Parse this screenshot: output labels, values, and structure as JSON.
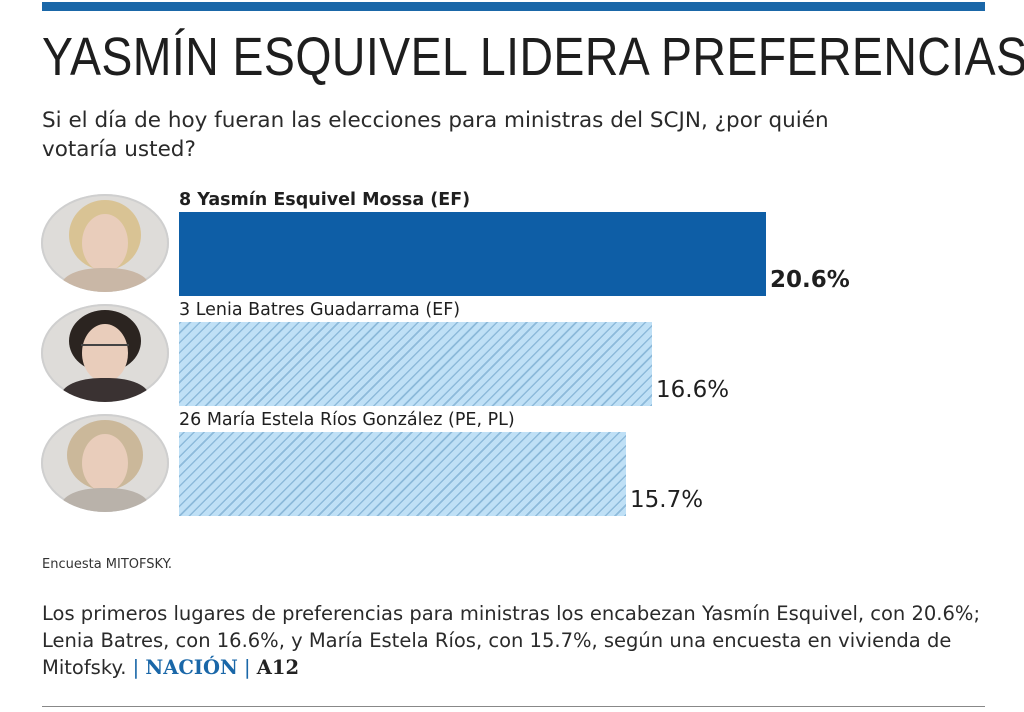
{
  "header": {
    "title": "YASMÍN ESQUIVEL LIDERA PREFERENCIAS",
    "subtitle": "Si el día de hoy fueran las elecciones para ministras del SCJN, ¿por quién votaría usted?"
  },
  "colors": {
    "accent": "#1a67a8",
    "leader_bar": "#0e5ea6",
    "other_bars": "#bfe0f6"
  },
  "chart_data": {
    "type": "bar",
    "orientation": "horizontal",
    "title": "",
    "xlabel": "",
    "ylabel": "",
    "categories": [
      "8 Yasmín Esquivel Mossa (EF)",
      "3 Lenia Batres Guadarrama (EF)",
      "26 María Estela Ríos González (PE, PL)"
    ],
    "values": [
      20.6,
      16.6,
      15.7
    ],
    "value_labels": [
      "20.6%",
      "16.6%",
      "15.7%"
    ],
    "unit": "%",
    "highlight_index": 0,
    "xlim": [
      0,
      24.5
    ],
    "grid": false
  },
  "footer": {
    "source": "Encuesta MITOFSKY.",
    "caption": "Los primeros lugares de preferencias para ministras los encabezan Yasmín Esquivel, con 20.6%; Lenia Batres, con 16.6%, y María Estela Ríos, con 15.7%, según una encuesta en vivienda de Mitofsky.",
    "separator": "|",
    "section": "NACIÓN",
    "page": "A12"
  }
}
